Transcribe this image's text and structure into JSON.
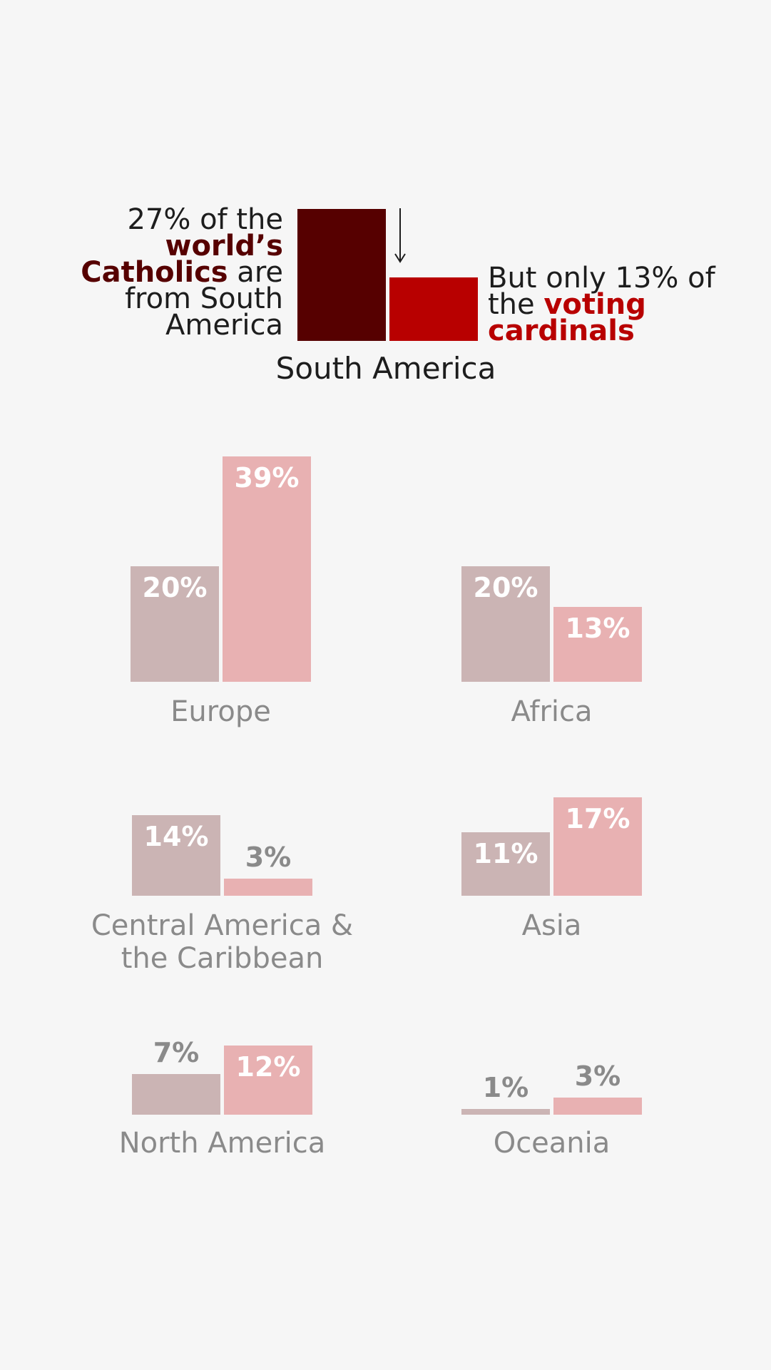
{
  "chart_data": {
    "type": "bar",
    "series": [
      {
        "key": "catholics",
        "color": "#560000",
        "muted_color": "#cbb4b4"
      },
      {
        "key": "cardinals",
        "color": "#b80000",
        "muted_color": "#e8b1b2"
      }
    ],
    "highlight": {
      "region": "South America",
      "values": [
        27,
        13
      ],
      "annotation_left": {
        "p1": "27% of the ",
        "hl1": "world’s Catholics",
        "p2": " are from South America"
      },
      "annotation_right": {
        "p1": "But only 13% of the ",
        "hl1": "voting cardinals"
      }
    },
    "regions": [
      {
        "name": "Europe",
        "values": [
          20,
          39
        ],
        "labels": [
          "20%",
          "39%"
        ]
      },
      {
        "name": "Africa",
        "values": [
          20,
          13
        ],
        "labels": [
          "20%",
          "13%"
        ]
      },
      {
        "name": "Central America & the Caribbean",
        "values": [
          14,
          3
        ],
        "labels": [
          "14%",
          "3%"
        ]
      },
      {
        "name": "Asia",
        "values": [
          11,
          17
        ],
        "labels": [
          "11%",
          "17%"
        ]
      },
      {
        "name": "North America",
        "values": [
          7,
          12
        ],
        "labels": [
          "7%",
          "12%"
        ]
      },
      {
        "name": "Oceania",
        "values": [
          1,
          3
        ],
        "labels": [
          "1%",
          "3%"
        ]
      }
    ],
    "xlabel": "",
    "ylabel": ""
  }
}
